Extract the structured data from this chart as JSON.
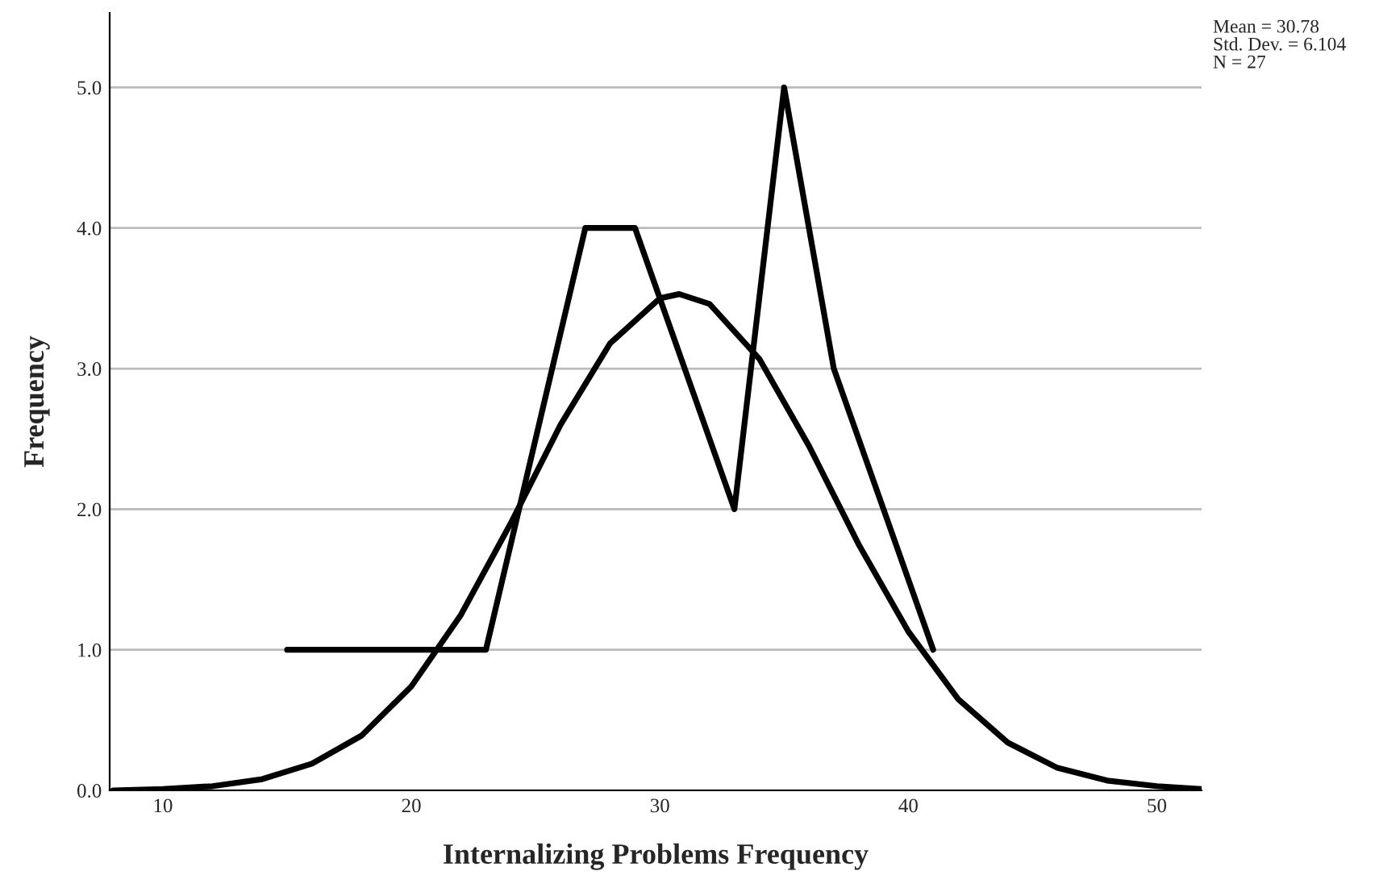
{
  "chart_data": {
    "type": "line",
    "xlabel": "Internalizing Problems Frequency",
    "ylabel": "Frequency",
    "series": [
      {
        "color": "#000000",
        "x": [
          15,
          23,
          27,
          29,
          33,
          35,
          37,
          41
        ],
        "values": [
          1,
          1,
          4,
          4,
          2,
          5,
          3,
          1
        ]
      },
      {
        "color": "#000000",
        "x": [
          8,
          10,
          12,
          14,
          16,
          18,
          20,
          22,
          24,
          26,
          28,
          30,
          30.78,
          32,
          34,
          36,
          38,
          40,
          42,
          44,
          46,
          48,
          50,
          51.8
        ],
        "values": [
          0,
          0.01,
          0.03,
          0.08,
          0.19,
          0.39,
          0.74,
          1.25,
          1.9,
          2.6,
          3.18,
          3.5,
          3.53,
          3.46,
          3.07,
          2.45,
          1.75,
          1.13,
          0.65,
          0.34,
          0.16,
          0.07,
          0.03,
          0.01
        ]
      }
    ],
    "xlim": [
      7.86,
      51.8
    ],
    "xticks": [
      10,
      20,
      30,
      40,
      50
    ],
    "ylim": [
      0,
      5.53
    ],
    "yticks": [
      {
        "value": 0,
        "label": "0.0"
      },
      {
        "value": 1,
        "label": "1.0"
      },
      {
        "value": 2,
        "label": "2.0"
      },
      {
        "value": 3,
        "label": "3.0"
      },
      {
        "value": 4,
        "label": "4.0"
      },
      {
        "value": 5,
        "label": "5.0"
      }
    ],
    "grid": "y",
    "legend": false,
    "marker": "none",
    "line_style": "solid",
    "annotations": [
      "Mean = 30.78",
      "Std. Dev. = 6.104",
      "N = 27"
    ]
  }
}
